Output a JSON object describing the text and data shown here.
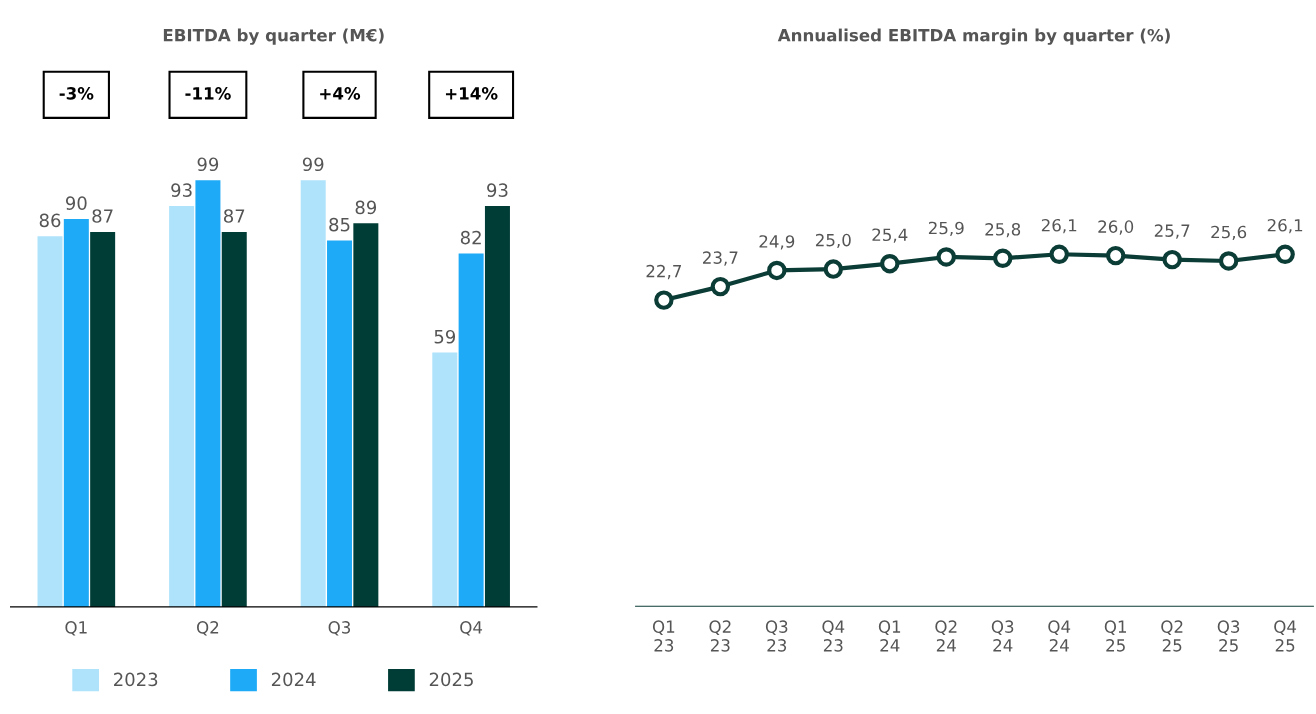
{
  "chart_data": [
    {
      "type": "bar",
      "title": "EBITDA by quarter (M€)",
      "categories": [
        "Q1",
        "Q2",
        "Q3",
        "Q4"
      ],
      "series": [
        {
          "name": "2023",
          "color": "#aee3fb",
          "values": [
            86,
            93,
            99,
            59
          ]
        },
        {
          "name": "2024",
          "color": "#1eaaf6",
          "values": [
            90,
            99,
            85,
            82
          ]
        },
        {
          "name": "2025",
          "color": "#003d36",
          "values": [
            87,
            87,
            89,
            93
          ]
        }
      ],
      "data_labels": true,
      "legend": "bottom",
      "grid": false,
      "annotations": [
        "-3%",
        "-11%",
        "+4%",
        "+14%"
      ]
    },
    {
      "type": "line",
      "title": "Annualised EBITDA margin by quarter (%)",
      "categories": [
        "Q1\n23",
        "Q2\n23",
        "Q3\n23",
        "Q4\n23",
        "Q1\n24",
        "Q2\n24",
        "Q3\n24",
        "Q4\n24",
        "Q1\n25",
        "Q2\n25",
        "Q3\n25",
        "Q4\n25"
      ],
      "series": [
        {
          "color": "#0b3d36",
          "values": [
            22.7,
            23.7,
            24.9,
            25.0,
            25.4,
            25.9,
            25.8,
            26.1,
            26.0,
            25.7,
            25.6,
            26.1
          ],
          "value_labels": [
            "22,7",
            "23,7",
            "24,9",
            "25,0",
            "25,4",
            "25,9",
            "25,8",
            "26,1",
            "26,0",
            "25,7",
            "25,6",
            "26,1"
          ]
        }
      ],
      "marker": "circle",
      "line_style": "solid",
      "grid": false,
      "legend": false
    }
  ]
}
